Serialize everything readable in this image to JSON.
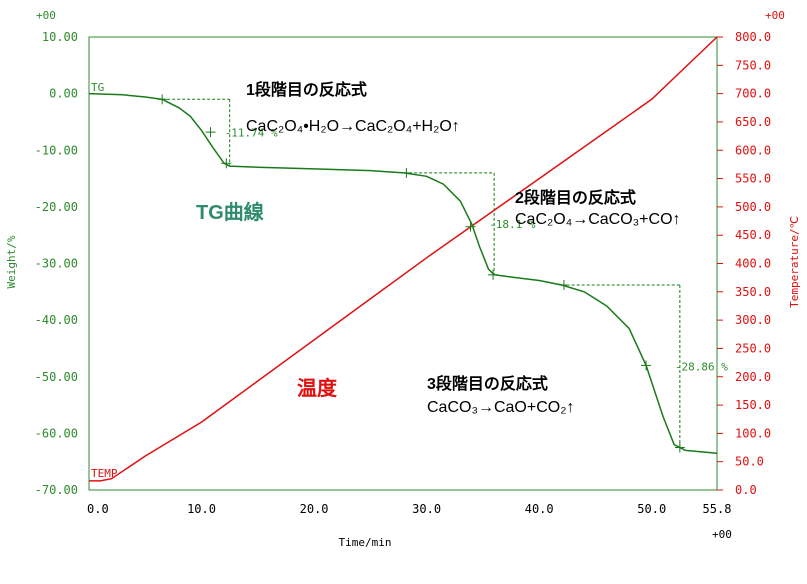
{
  "chart_data": {
    "type": "line",
    "x_axis": {
      "label": "Time/min",
      "ticks": [
        "0.0",
        "10.0",
        "20.0",
        "30.0",
        "40.0",
        "50.0",
        "55.8"
      ],
      "range": [
        0,
        55.8
      ],
      "multiplier": "+00"
    },
    "y_left": {
      "label": "Weight/%",
      "ticks": [
        "10.00",
        "0.00",
        "-10.00",
        "-20.00",
        "-30.00",
        "-40.00",
        "-50.00",
        "-60.00",
        "-70.00"
      ],
      "range": [
        -70,
        10
      ],
      "multiplier": "+00",
      "color": "#2e8b2e"
    },
    "y_right": {
      "label": "Temperature/℃",
      "ticks": [
        "800.0",
        "750.0",
        "700.0",
        "650.0",
        "600.0",
        "550.0",
        "500.0",
        "450.0",
        "400.0",
        "350.0",
        "300.0",
        "250.0",
        "200.0",
        "150.0",
        "100.0",
        "50.0",
        "0.0"
      ],
      "range": [
        0,
        800
      ],
      "multiplier": "+00",
      "color": "#e01010"
    },
    "series": [
      {
        "name": "TG",
        "axis": "left",
        "color": "#1a7a1a",
        "x": [
          0,
          3,
          5,
          6.5,
          8,
          9,
          10,
          11,
          12,
          12.5,
          15,
          20,
          25,
          28,
          30,
          31.5,
          33,
          34,
          34.7,
          35.5,
          36,
          38,
          40,
          42,
          44,
          46,
          48,
          49.5,
          51,
          52,
          53,
          55.8
        ],
        "y": [
          0,
          -0.2,
          -0.6,
          -1,
          -2.5,
          -4,
          -6.5,
          -9.5,
          -12.3,
          -12.8,
          -13,
          -13.3,
          -13.6,
          -14,
          -14.6,
          -16,
          -19,
          -23,
          -27,
          -31,
          -32,
          -32.5,
          -33,
          -33.8,
          -35,
          -37.5,
          -41.5,
          -48,
          -57,
          -62,
          -63,
          -63.5
        ]
      },
      {
        "name": "TEMP",
        "axis": "right",
        "color": "#e01010",
        "x": [
          0,
          1,
          2,
          5,
          10,
          20,
          30,
          40,
          50,
          55.8
        ],
        "y": [
          16,
          16,
          20,
          60,
          120,
          265,
          410,
          550,
          690,
          800
        ]
      }
    ],
    "steps": [
      {
        "label": "-11.74 %",
        "x_start": 6.5,
        "x_end": 12.5,
        "y_start": -1,
        "y_end": -12.8
      },
      {
        "label": "-18.1 %",
        "x_start": 28,
        "x_end": 36,
        "y_start": -14,
        "y_end": -32
      },
      {
        "label": "-28.86 %",
        "x_start": 42,
        "x_end": 52.5,
        "y_start": -33.8,
        "y_end": -62.5
      }
    ],
    "markers": [
      {
        "x": 6.5,
        "y": -1
      },
      {
        "x": 10.8,
        "y": -6.8
      },
      {
        "x": 12.2,
        "y": -12.3
      },
      {
        "x": 28.2,
        "y": -14
      },
      {
        "x": 33.9,
        "y": -23.5
      },
      {
        "x": 35.9,
        "y": -32
      },
      {
        "x": 42.2,
        "y": -33.8
      },
      {
        "x": 49.5,
        "y": -48
      },
      {
        "x": 52.5,
        "y": -62.5
      }
    ]
  },
  "annotations": {
    "step1_title": "1段階目の反応式",
    "step1_eq": "CaC₂O₄•H₂O→CaC₂O₄+H₂O↑",
    "step2_title": "2段階目の反応式",
    "step2_eq": "CaC₂O₄→CaCO₃+CO↑",
    "step3_title": "3段階目の反応式",
    "step3_eq": "CaCO₃→CaO+CO₂↑",
    "tg_label": "TG曲線",
    "temp_label": "温度",
    "tg_tag": "TG",
    "temp_tag": "TEMP"
  },
  "colors": {
    "tg": "#1a7a1a",
    "tg_text": "#2e8b2e",
    "temp": "#e01010",
    "frame": "#2e8b2e"
  }
}
